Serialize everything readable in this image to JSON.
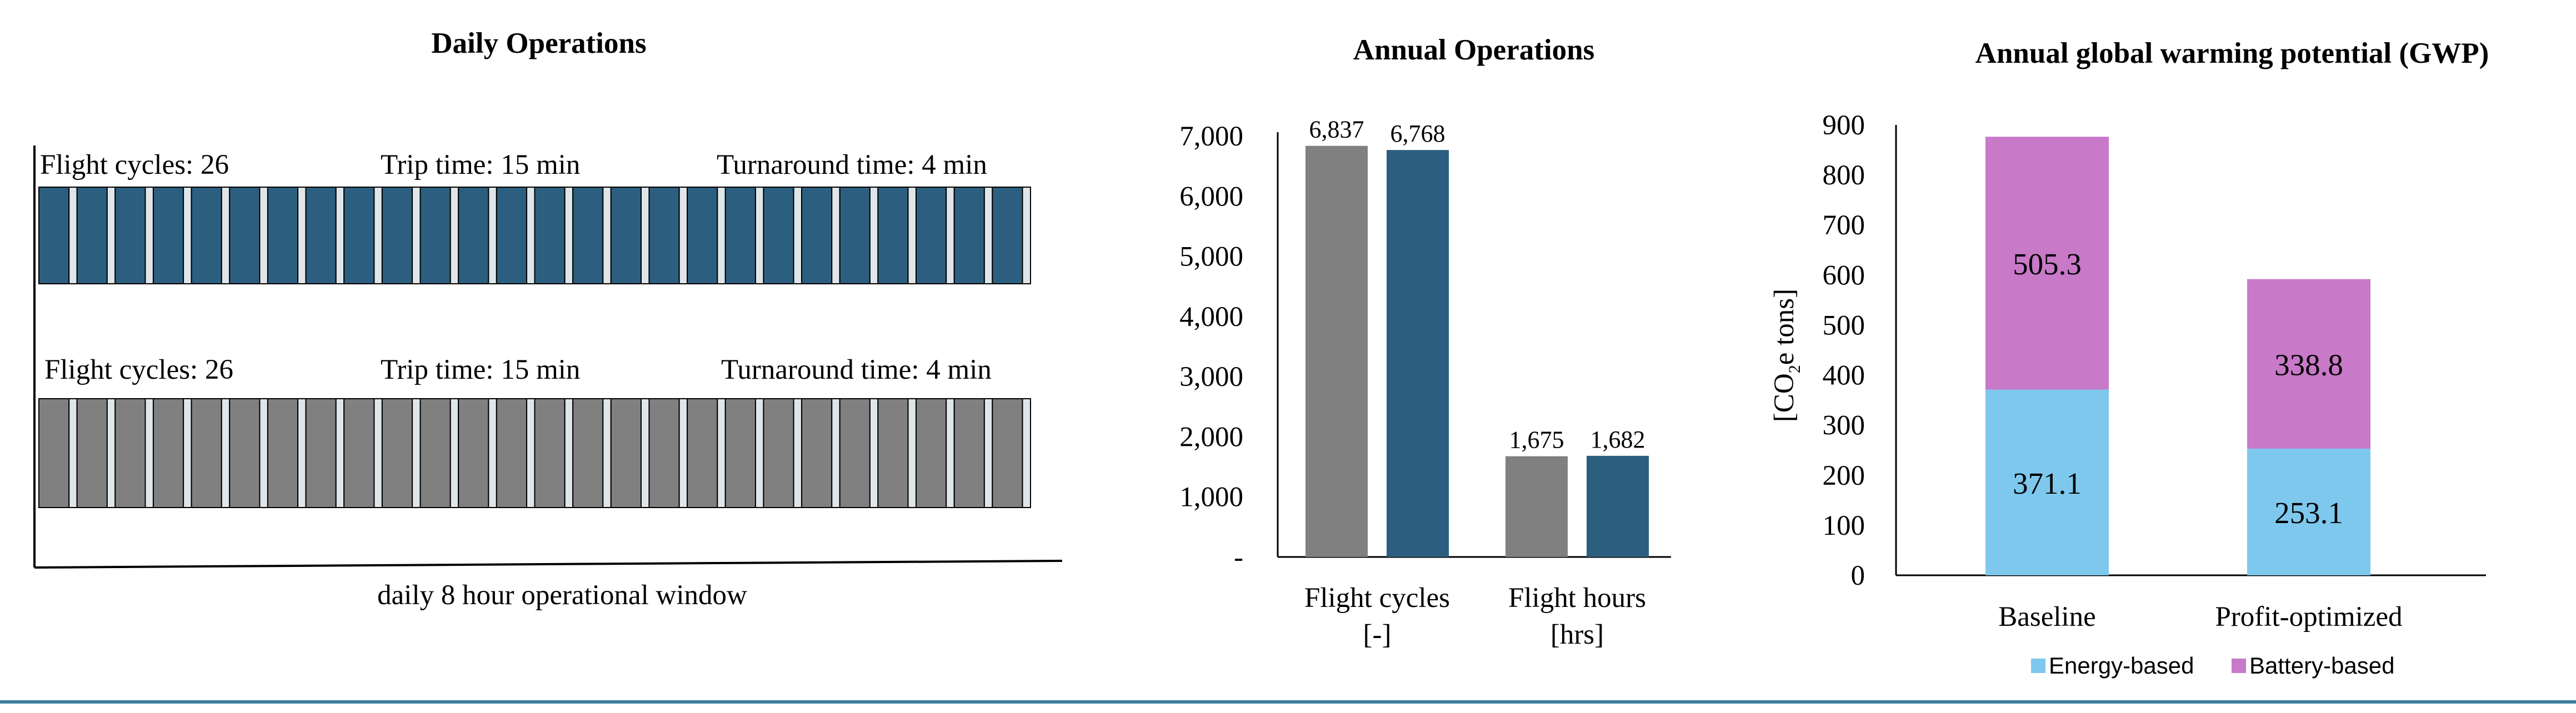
{
  "colors": {
    "blue": "#2c5f7f",
    "gray": "#808080",
    "energy": "#7ec8ee",
    "battery": "#c879c8",
    "bottom_rule": "#3f7f9f"
  },
  "chart_data": [
    {
      "type": "timeline",
      "title": "Daily Operations",
      "xlabel": "daily 8 hour operational window",
      "rows": [
        {
          "name": "blue-row",
          "color": "#2c5f7f",
          "flight_cycles": 26,
          "labels": {
            "cycles": "Flight cycles: 26",
            "trip": "Trip time: 15 min",
            "turnaround": "Turnaround time: 4 min"
          }
        },
        {
          "name": "gray-row",
          "color": "#808080",
          "flight_cycles": 26,
          "labels": {
            "cycles": "Flight cycles: 26",
            "trip": "Trip time: 15 min",
            "turnaround": "Turnaround time: 4 min"
          }
        }
      ]
    },
    {
      "type": "bar",
      "title": "Annual Operations",
      "categories": [
        "Flight cycles [-]",
        "Flight hours [hrs]"
      ],
      "category_lines": [
        [
          "Flight cycles",
          "[-]"
        ],
        [
          "Flight hours",
          "[hrs]"
        ]
      ],
      "series": [
        {
          "name": "gray",
          "color": "#808080",
          "values": [
            6837,
            1675
          ],
          "labels": [
            "6,837",
            "1,675"
          ]
        },
        {
          "name": "blue",
          "color": "#2c5f7f",
          "values": [
            6768,
            1682
          ],
          "labels": [
            "6,768",
            "1,682"
          ]
        }
      ],
      "ylim": [
        0,
        7000
      ],
      "yticks": [
        0,
        1000,
        2000,
        3000,
        4000,
        5000,
        6000,
        7000
      ],
      "ytick_labels": [
        "-",
        "1,000",
        "2,000",
        "3,000",
        "4,000",
        "5,000",
        "6,000",
        "7,000"
      ]
    },
    {
      "type": "stacked-bar",
      "title": "Annual global warming potential (GWP)",
      "ylabel": "[CO2e tons]",
      "ylabel_parts": {
        "pre": "[CO",
        "sub": "2",
        "post": "e tons]"
      },
      "categories": [
        "Baseline",
        "Profit-optimized"
      ],
      "series": [
        {
          "name": "Energy-based",
          "color": "#7ec8ee",
          "values": [
            371.1,
            253.1
          ],
          "labels": [
            "371.1",
            "253.1"
          ]
        },
        {
          "name": "Battery-based",
          "color": "#c879c8",
          "values": [
            505.3,
            338.8
          ],
          "labels": [
            "505.3",
            "338.8"
          ]
        }
      ],
      "ylim": [
        0,
        900
      ],
      "yticks": [
        0,
        100,
        200,
        300,
        400,
        500,
        600,
        700,
        800,
        900
      ],
      "ytick_labels": [
        "0",
        "100",
        "200",
        "300",
        "400",
        "500",
        "600",
        "700",
        "800",
        "900"
      ],
      "legend": [
        "Energy-based",
        "Battery-based"
      ],
      "legend_position": "bottom"
    }
  ]
}
